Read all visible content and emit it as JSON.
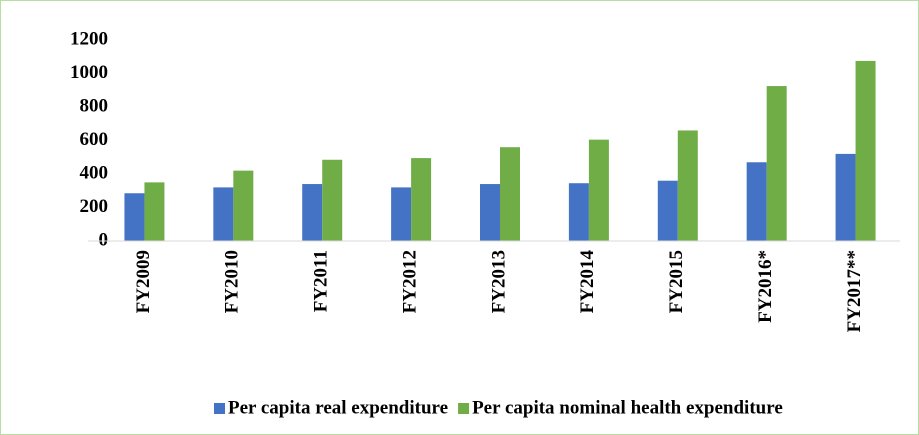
{
  "chart_data": {
    "type": "bar",
    "categories": [
      "FY2009",
      "FY2010",
      "FY2011",
      "FY2012",
      "FY2013",
      "FY2014",
      "FY2015",
      "FY2016*",
      "FY2017**"
    ],
    "series": [
      {
        "name": "Per capita real expenditure",
        "color": "#4472c4",
        "values": [
          285,
          320,
          340,
          320,
          340,
          345,
          360,
          470,
          520
        ]
      },
      {
        "name": "Per capita nominal health expenditure",
        "color": "#70ad47",
        "values": [
          350,
          420,
          485,
          495,
          560,
          605,
          660,
          925,
          1075
        ]
      }
    ],
    "ylim": [
      0,
      1200
    ],
    "yticks": [
      0,
      200,
      400,
      600,
      800,
      1000,
      1200
    ],
    "grid": false,
    "legend": "bottom"
  }
}
